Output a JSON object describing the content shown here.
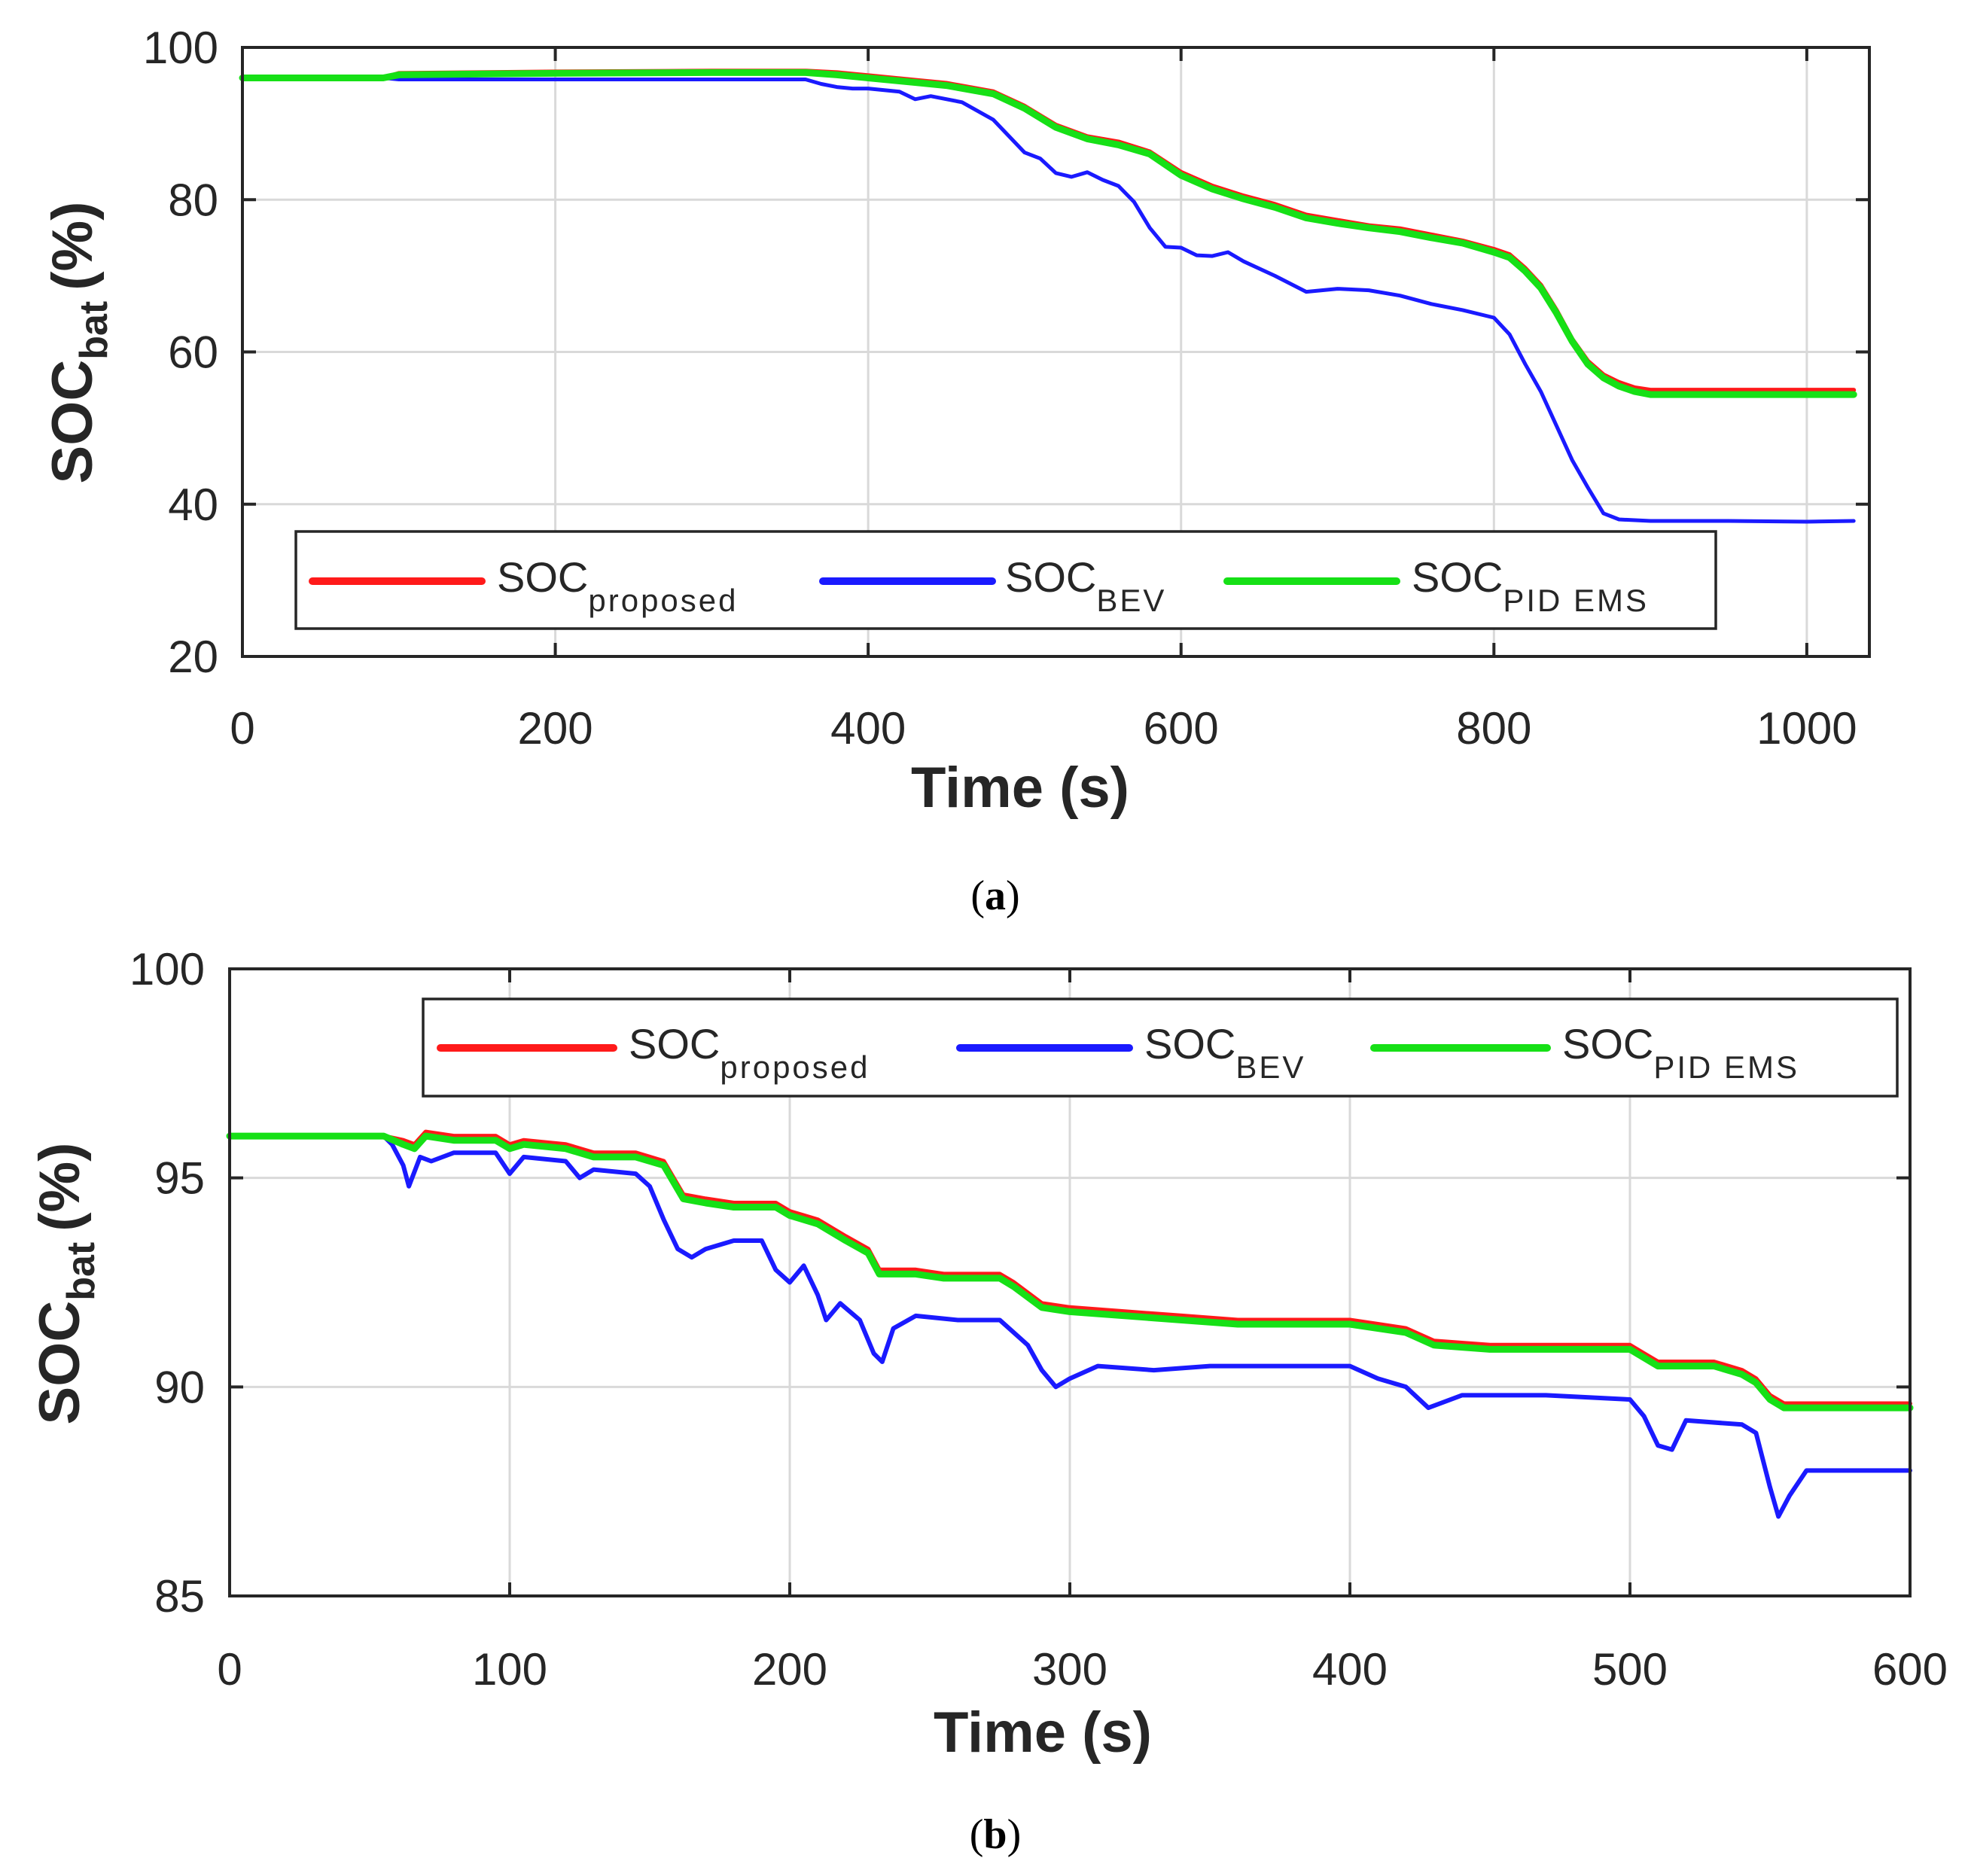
{
  "colors": {
    "proposed": "#ff1a1a",
    "bev": "#1a1aff",
    "pid": "#16e016"
  },
  "chart_data": [
    {
      "id": "a",
      "type": "line",
      "caption": "a",
      "xlabel": "Time (s)",
      "ylabel_main": "SOC",
      "ylabel_sub": "bat",
      "ylabel_unit": "(%)",
      "xlim": [
        0,
        1040
      ],
      "ylim": [
        20,
        100
      ],
      "xticks": [
        0,
        200,
        400,
        600,
        800,
        1000
      ],
      "yticks": [
        20,
        40,
        60,
        80,
        100
      ],
      "grid": true,
      "legend_position": "bottom-left",
      "series": [
        {
          "key": "proposed",
          "name_main": "SOC",
          "name_sub": "proposed",
          "color_key": "proposed",
          "x": [
            0,
            90,
            100,
            200,
            300,
            360,
            380,
            400,
            430,
            450,
            480,
            500,
            520,
            540,
            560,
            580,
            600,
            620,
            640,
            660,
            680,
            700,
            720,
            740,
            760,
            780,
            800,
            810,
            820,
            830,
            840,
            850,
            860,
            870,
            880,
            890,
            900,
            950,
            1000,
            1030
          ],
          "y": [
            96,
            96,
            96.6,
            96.8,
            96.9,
            96.9,
            96.7,
            96.3,
            95.7,
            95.3,
            94.2,
            92.3,
            89.8,
            88.3,
            87.6,
            86.3,
            83.6,
            81.8,
            80.5,
            79.4,
            78,
            77.3,
            76.6,
            76.2,
            75.4,
            74.6,
            73.5,
            72.8,
            71,
            68.8,
            65.5,
            61.7,
            58.8,
            57,
            56,
            55.3,
            55,
            55,
            55,
            55
          ]
        },
        {
          "key": "bev",
          "name_main": "SOC",
          "name_sub": "BEV",
          "color_key": "bev",
          "x": [
            0,
            90,
            100,
            200,
            300,
            360,
            370,
            380,
            390,
            400,
            420,
            430,
            440,
            460,
            480,
            500,
            510,
            520,
            530,
            540,
            550,
            560,
            570,
            580,
            590,
            600,
            610,
            620,
            630,
            640,
            660,
            680,
            700,
            720,
            740,
            760,
            780,
            800,
            810,
            820,
            830,
            840,
            850,
            860,
            870,
            880,
            900,
            950,
            1000,
            1030
          ],
          "y": [
            96,
            96,
            95.8,
            95.8,
            95.8,
            95.8,
            95.2,
            94.8,
            94.6,
            94.6,
            94.2,
            93.2,
            93.6,
            92.8,
            90.5,
            86.2,
            85.4,
            83.5,
            83,
            83.6,
            82.6,
            81.8,
            79.7,
            76.3,
            73.8,
            73.7,
            72.7,
            72.6,
            73.1,
            71.9,
            70,
            67.9,
            68.3,
            68.1,
            67.4,
            66.3,
            65.5,
            64.5,
            62.3,
            58.4,
            54.8,
            50.3,
            45.8,
            42.2,
            38.8,
            38,
            37.8,
            37.8,
            37.7,
            37.8
          ]
        },
        {
          "key": "pid",
          "name_main": "SOC",
          "name_sub": "PID EMS",
          "color_key": "pid",
          "x": [
            0,
            90,
            100,
            200,
            300,
            360,
            380,
            400,
            430,
            450,
            480,
            500,
            520,
            540,
            560,
            580,
            600,
            620,
            640,
            660,
            680,
            700,
            720,
            740,
            760,
            780,
            800,
            810,
            820,
            830,
            840,
            850,
            860,
            870,
            880,
            890,
            900,
            950,
            1000,
            1030
          ],
          "y": [
            96,
            96,
            96.4,
            96.6,
            96.7,
            96.7,
            96.4,
            96,
            95.4,
            95,
            93.9,
            92,
            89.5,
            88,
            87.2,
            86,
            83.2,
            81.4,
            80.1,
            79,
            77.6,
            76.9,
            76.3,
            75.8,
            75,
            74.3,
            73.1,
            72.4,
            70.6,
            68.4,
            65.1,
            61.4,
            58.4,
            56.6,
            55.5,
            54.8,
            54.4,
            54.4,
            54.4,
            54.4
          ]
        }
      ]
    },
    {
      "id": "b",
      "type": "line",
      "caption": "b",
      "xlabel": "Time (s)",
      "ylabel_main": "SOC",
      "ylabel_sub": "bat",
      "ylabel_unit": "(%)",
      "xlim": [
        0,
        600
      ],
      "ylim": [
        85,
        100
      ],
      "xticks": [
        0,
        100,
        200,
        300,
        400,
        500,
        600
      ],
      "yticks": [
        85,
        90,
        95,
        100
      ],
      "grid": true,
      "legend_position": "top-right",
      "series": [
        {
          "key": "proposed",
          "name_main": "SOC",
          "name_sub": "proposed",
          "color_key": "proposed",
          "x": [
            0,
            55,
            62,
            66,
            70,
            80,
            95,
            100,
            105,
            120,
            130,
            145,
            155,
            162,
            170,
            180,
            195,
            200,
            205,
            210,
            220,
            228,
            232,
            245,
            255,
            275,
            280,
            290,
            300,
            320,
            340,
            360,
            380,
            400,
            410,
            420,
            430,
            450,
            480,
            500,
            505,
            510,
            515,
            530,
            540,
            545,
            550,
            555,
            560,
            580,
            600
          ],
          "y": [
            96,
            96,
            95.9,
            95.8,
            96.1,
            96,
            96,
            95.8,
            95.9,
            95.8,
            95.6,
            95.6,
            95.4,
            94.6,
            94.5,
            94.4,
            94.4,
            94.2,
            94.1,
            94,
            93.6,
            93.3,
            92.8,
            92.8,
            92.7,
            92.7,
            92.5,
            92,
            91.9,
            91.8,
            91.7,
            91.6,
            91.6,
            91.6,
            91.5,
            91.4,
            91.1,
            91,
            91,
            91,
            90.8,
            90.6,
            90.6,
            90.6,
            90.4,
            90.2,
            89.8,
            89.6,
            89.6,
            89.6,
            89.6
          ]
        },
        {
          "key": "bev",
          "name_main": "SOC",
          "name_sub": "BEV",
          "color_key": "bev",
          "x": [
            0,
            55,
            58,
            62,
            64,
            68,
            72,
            80,
            95,
            100,
            105,
            120,
            125,
            130,
            145,
            150,
            155,
            160,
            165,
            170,
            180,
            190,
            195,
            200,
            205,
            210,
            213,
            218,
            225,
            230,
            233,
            237,
            245,
            260,
            275,
            285,
            290,
            295,
            300,
            310,
            330,
            350,
            380,
            400,
            410,
            420,
            428,
            440,
            470,
            500,
            505,
            510,
            515,
            520,
            540,
            545,
            550,
            553,
            557,
            563,
            580,
            600
          ],
          "y": [
            96,
            96,
            95.8,
            95.3,
            94.8,
            95.5,
            95.4,
            95.6,
            95.6,
            95.1,
            95.5,
            95.4,
            95,
            95.2,
            95.1,
            94.8,
            94,
            93.3,
            93.1,
            93.3,
            93.5,
            93.5,
            92.8,
            92.5,
            92.9,
            92.2,
            91.6,
            92,
            91.6,
            90.8,
            90.6,
            91.4,
            91.7,
            91.6,
            91.6,
            91,
            90.4,
            90,
            90.2,
            90.5,
            90.4,
            90.5,
            90.5,
            90.5,
            90.2,
            90,
            89.5,
            89.8,
            89.8,
            89.7,
            89.3,
            88.6,
            88.5,
            89.2,
            89.1,
            88.9,
            87.6,
            86.9,
            87.4,
            88,
            88,
            88
          ]
        },
        {
          "key": "pid",
          "name_main": "SOC",
          "name_sub": "PID EMS",
          "color_key": "pid",
          "x": [
            0,
            55,
            62,
            66,
            70,
            80,
            95,
            100,
            105,
            120,
            130,
            145,
            155,
            162,
            170,
            180,
            195,
            200,
            205,
            210,
            220,
            228,
            232,
            245,
            255,
            275,
            280,
            290,
            300,
            320,
            340,
            360,
            380,
            400,
            410,
            420,
            430,
            450,
            480,
            500,
            505,
            510,
            515,
            530,
            540,
            545,
            550,
            555,
            560,
            580,
            600
          ],
          "y": [
            96,
            96,
            95.8,
            95.7,
            96,
            95.9,
            95.9,
            95.7,
            95.8,
            95.7,
            95.5,
            95.5,
            95.3,
            94.5,
            94.4,
            94.3,
            94.3,
            94.1,
            94,
            93.9,
            93.5,
            93.2,
            92.7,
            92.7,
            92.6,
            92.6,
            92.4,
            91.9,
            91.8,
            91.7,
            91.6,
            91.5,
            91.5,
            91.5,
            91.4,
            91.3,
            91,
            90.9,
            90.9,
            90.9,
            90.7,
            90.5,
            90.5,
            90.5,
            90.3,
            90.1,
            89.7,
            89.5,
            89.5,
            89.5,
            89.5
          ]
        }
      ]
    }
  ]
}
